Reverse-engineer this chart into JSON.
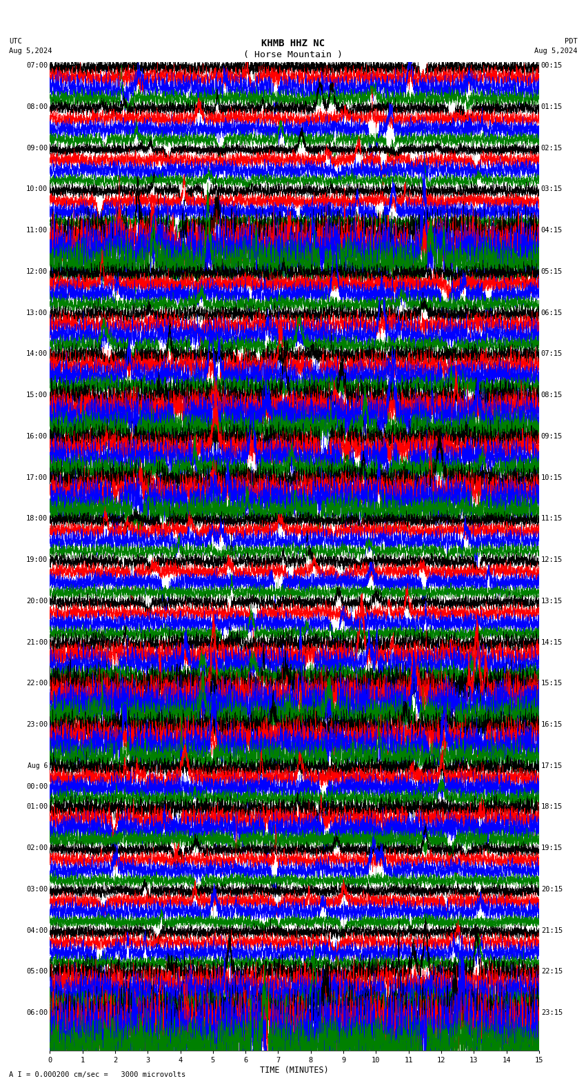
{
  "title_line1": "KHMB HHZ NC",
  "title_line2": "( Horse Mountain )",
  "scale_label": "I  = 0.000200 cm/sec",
  "utc_label": "UTC",
  "utc_date": "Aug 5,2024",
  "pdt_label": "PDT",
  "pdt_date": "Aug 5,2024",
  "xlabel": "TIME (MINUTES)",
  "bottom_note": "A I = 0.000200 cm/sec =   3000 microvolts",
  "left_times": [
    "07:00",
    "08:00",
    "09:00",
    "10:00",
    "11:00",
    "12:00",
    "13:00",
    "14:00",
    "15:00",
    "16:00",
    "17:00",
    "18:00",
    "19:00",
    "20:00",
    "21:00",
    "22:00",
    "23:00",
    "Aug 6\n00:00",
    "01:00",
    "02:00",
    "03:00",
    "04:00",
    "05:00",
    "06:00"
  ],
  "right_times": [
    "00:15",
    "01:15",
    "02:15",
    "03:15",
    "04:15",
    "05:15",
    "06:15",
    "07:15",
    "08:15",
    "09:15",
    "10:15",
    "11:15",
    "12:15",
    "13:15",
    "14:15",
    "15:15",
    "16:15",
    "17:15",
    "18:15",
    "19:15",
    "20:15",
    "21:15",
    "22:15",
    "23:15"
  ],
  "colors": [
    "black",
    "red",
    "blue",
    "green"
  ],
  "bg_color": "white",
  "num_groups": 24,
  "traces_per_group": 4,
  "xmin": 0,
  "xmax": 15,
  "xticks": [
    0,
    1,
    2,
    3,
    4,
    5,
    6,
    7,
    8,
    9,
    10,
    11,
    12,
    13,
    14,
    15
  ],
  "title_fontsize": 10,
  "label_fontsize": 7.5,
  "tick_fontsize": 7.5,
  "amp_scales": [
    1.2,
    1.0,
    0.9,
    1.0,
    3.0,
    1.2,
    1.3,
    1.5,
    2.2,
    1.8,
    2.0,
    1.0,
    1.0,
    1.0,
    1.5,
    2.5,
    2.0,
    1.3,
    1.5,
    1.0,
    1.0,
    1.0,
    2.0,
    4.0
  ],
  "color_amp_scales": [
    1.0,
    1.2,
    1.5,
    1.0
  ]
}
